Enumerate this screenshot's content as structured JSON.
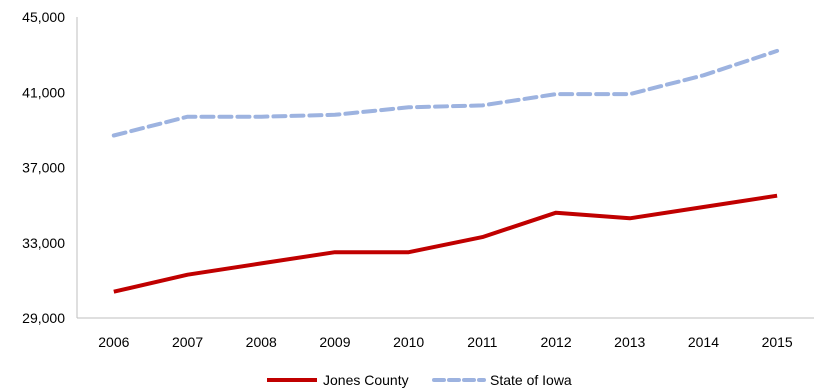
{
  "chart_data": {
    "type": "line",
    "title": "",
    "xlabel": "",
    "ylabel": "",
    "categories": [
      "2006",
      "2007",
      "2008",
      "2009",
      "2010",
      "2011",
      "2012",
      "2013",
      "2014",
      "2015"
    ],
    "yticks": [
      "29,000",
      "33,000",
      "37,000",
      "41,000",
      "45,000"
    ],
    "ylim": [
      29000,
      45000
    ],
    "grid": false,
    "legend": "bottom",
    "series": [
      {
        "name": "Jones County",
        "color": "#c00000",
        "style": "solid",
        "values": [
          30400,
          31300,
          31900,
          32500,
          32500,
          33300,
          34600,
          34300,
          34900,
          35500
        ]
      },
      {
        "name": "State of Iowa",
        "color": "#9db3e0",
        "style": "dashed",
        "values": [
          38700,
          39700,
          39700,
          39800,
          40200,
          40300,
          40900,
          40900,
          41900,
          43200
        ]
      }
    ]
  }
}
